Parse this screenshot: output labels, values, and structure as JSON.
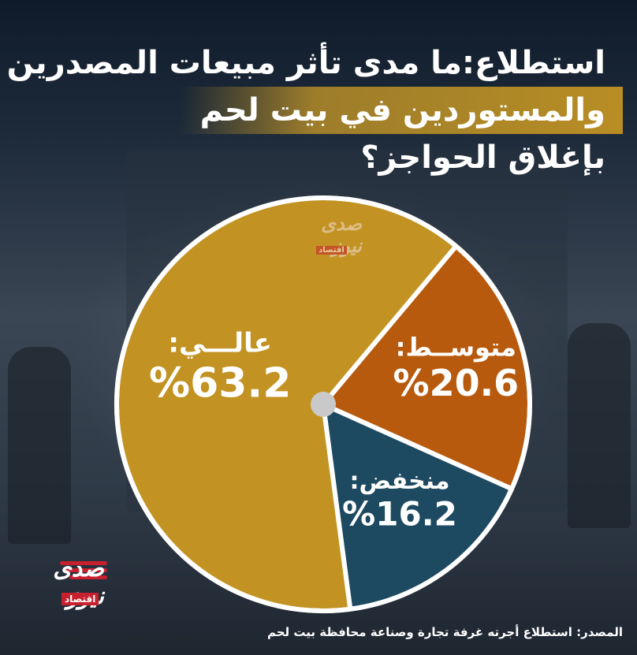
{
  "title_lines": [
    "استطلاع:ما مدى تأثر مبيعات المصدرين",
    "والمستوردين في بيت لحم",
    "بإغلاق الحواجز؟"
  ],
  "source": "المصدر: استطلاع أجرته غرفة تجارة وصناعة محافظة بيت لحم",
  "logo": {
    "name": "صدى نيوز",
    "section": "اقتصاد"
  },
  "colors": {
    "high": "#c29322",
    "medium": "#b75a0d",
    "low": "#1d4a61",
    "center_dot": "#c9c9c9",
    "title_band": "#b88d24",
    "logo_red": "#c8202e"
  },
  "chart_data": {
    "type": "pie",
    "title": "استطلاع:ما مدى تأثر مبيعات المصدرين والمستوردين في بيت لحم بإغلاق الحواجز؟",
    "slices": [
      {
        "label": "عالـــي:",
        "value": 63.2,
        "display": "%63.2",
        "color": "#c29322"
      },
      {
        "label": "متوســط:",
        "value": 20.6,
        "display": "%20.6",
        "color": "#b75a0d"
      },
      {
        "label": "منخفض:",
        "value": 16.2,
        "display": "%16.2",
        "color": "#1d4a61"
      }
    ],
    "unit": "%",
    "legend": "none"
  }
}
